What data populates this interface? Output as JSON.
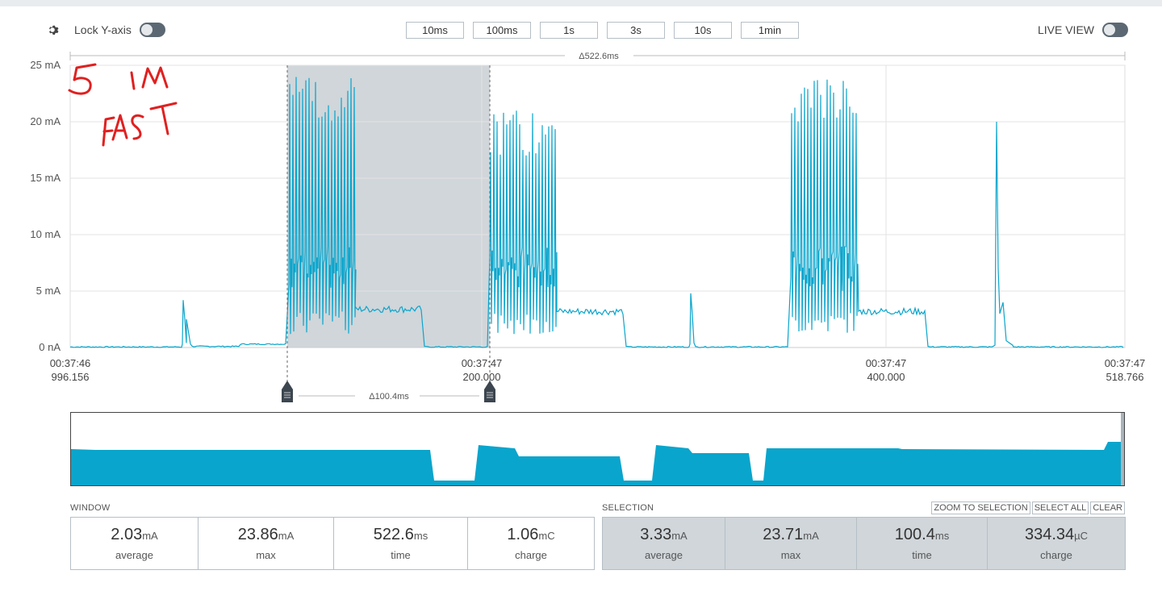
{
  "toolbar": {
    "lock_label": "Lock Y-axis",
    "live_label": "LIVE VIEW",
    "window_buttons": [
      "10ms",
      "100ms",
      "1s",
      "3s",
      "10s",
      "1min"
    ]
  },
  "chart_data": {
    "type": "line",
    "ylabel": "",
    "y_ticks": [
      "25 mA",
      "20 mA",
      "15 mA",
      "10 mA",
      "5 mA",
      "0 nA"
    ],
    "ylim": [
      0,
      25
    ],
    "x_ticks": [
      {
        "time": "00:37:46",
        "ms": "996.156"
      },
      {
        "time": "00:37:47",
        "ms": "200.000"
      },
      {
        "time": "00:37:47",
        "ms": "400.000"
      },
      {
        "time": "00:37:47",
        "ms": "518.766"
      }
    ],
    "window_delta": "Δ522.6ms",
    "selection_delta": "Δ100.4ms",
    "series_color": "#0aa5cc",
    "selection_color": "#d0d6da",
    "annotation_color": "#e02020",
    "annotation_text": [
      "5",
      "IM",
      "FAST"
    ]
  },
  "window_stats": {
    "title": "WINDOW",
    "cells": [
      {
        "value": "2.03",
        "unit": "mA",
        "label": "average"
      },
      {
        "value": "23.86",
        "unit": "mA",
        "label": "max"
      },
      {
        "value": "522.6",
        "unit": "ms",
        "label": "time"
      },
      {
        "value": "1.06",
        "unit": "mC",
        "label": "charge"
      }
    ]
  },
  "selection_stats": {
    "title": "SELECTION",
    "actions": [
      "ZOOM TO SELECTION",
      "SELECT ALL",
      "CLEAR"
    ],
    "cells": [
      {
        "value": "3.33",
        "unit": "mA",
        "label": "average"
      },
      {
        "value": "23.71",
        "unit": "mA",
        "label": "max"
      },
      {
        "value": "100.4",
        "unit": "ms",
        "label": "time"
      },
      {
        "value": "334.34",
        "unit": "µC",
        "label": "charge"
      }
    ]
  }
}
